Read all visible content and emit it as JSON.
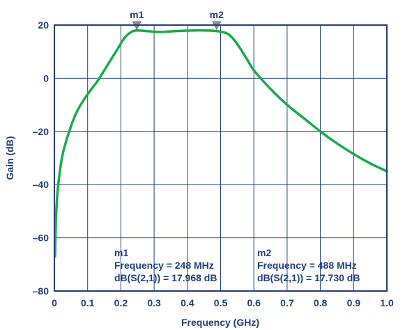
{
  "chart_data": {
    "type": "line",
    "title": "",
    "xlabel": "Frequency (GHz)",
    "ylabel": "Gain (dB)",
    "xlim": [
      0,
      1.0
    ],
    "ylim": [
      -80,
      20
    ],
    "xticks": [
      0,
      0.1,
      0.2,
      0.3,
      0.4,
      0.5,
      0.6,
      0.7,
      0.8,
      0.9,
      1.0
    ],
    "xtick_labels": [
      "0",
      "0.1",
      "0.2",
      "0.3",
      "0.4",
      "0.5",
      "0.6",
      "0.7",
      "0.8",
      "0.9",
      "1.0"
    ],
    "yticks": [
      -80,
      -60,
      -40,
      -20,
      0,
      20
    ],
    "ytick_labels": [
      "–80",
      "–60",
      "–40",
      "–20",
      "0",
      "20"
    ],
    "grid": true,
    "line_color": "#1aaa4a",
    "grid_color": "#1f3f7a",
    "series": [
      {
        "x": [
          0.002,
          0.005,
          0.01,
          0.02,
          0.03,
          0.05,
          0.07,
          0.1,
          0.13,
          0.16,
          0.19,
          0.21,
          0.23,
          0.248,
          0.28,
          0.32,
          0.36,
          0.4,
          0.44,
          0.488,
          0.52,
          0.54,
          0.56,
          0.58,
          0.6,
          0.65,
          0.7,
          0.75,
          0.8,
          0.85,
          0.9,
          0.95,
          1.0
        ],
        "y": [
          -67,
          -52,
          -42,
          -32,
          -26,
          -18,
          -12,
          -6,
          -1,
          5,
          11,
          15,
          17.3,
          17.968,
          17.7,
          17.4,
          17.7,
          17.9,
          18.0,
          17.73,
          16.8,
          14.5,
          11,
          7,
          3,
          -4,
          -10,
          -15,
          -20,
          -24.5,
          -28.5,
          -32,
          -35
        ]
      }
    ],
    "markers": [
      {
        "name": "m1",
        "x": 0.248,
        "y": 17.968
      },
      {
        "name": "m2",
        "x": 0.488,
        "y": 17.73
      }
    ],
    "annotations": [
      {
        "lines": [
          "m1",
          "Frequency = 248 MHz",
          "dB(S(2,1)) = 17.968 dB"
        ]
      },
      {
        "lines": [
          "m2",
          "Frequency = 488 MHz",
          "dB(S(2,1)) = 17.730 dB"
        ]
      }
    ]
  }
}
